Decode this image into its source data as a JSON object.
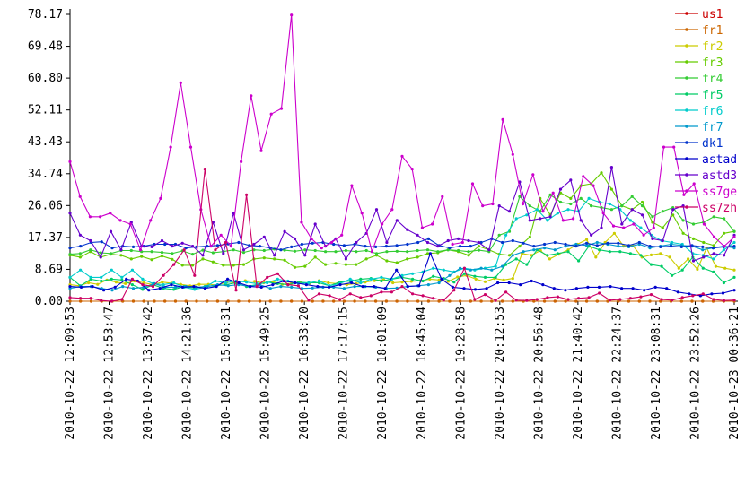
{
  "chart_data": {
    "type": "line",
    "title": "",
    "xlabel": "",
    "ylabel": "",
    "ylim": [
      0,
      78.17
    ],
    "y_ticks": [
      "0.00",
      "8.69",
      "17.37",
      "26.06",
      "34.74",
      "43.43",
      "52.11",
      "60.80",
      "69.48",
      "78.17"
    ],
    "x_ticks": [
      "2010-10-22 12:09:53",
      "2010-10-22 12:53:47",
      "2010-10-22 13:37:42",
      "2010-10-22 14:21:36",
      "2010-10-22 15:05:31",
      "2010-10-22 15:49:25",
      "2010-10-22 16:33:20",
      "2010-10-22 17:17:15",
      "2010-10-22 18:01:09",
      "2010-10-22 18:45:04",
      "2010-10-22 19:28:58",
      "2010-10-22 20:12:53",
      "2010-10-22 20:56:48",
      "2010-10-22 21:40:42",
      "2010-10-22 22:24:37",
      "2010-10-22 23:08:31",
      "2010-10-22 23:52:26",
      "2010-10-23 00:36:21"
    ],
    "grid": false,
    "legend_position": "right",
    "points_per_series": 64,
    "series": [
      {
        "name": "us1",
        "color": "#cc0000",
        "values": [
          0,
          0,
          0,
          0,
          0,
          0,
          0,
          0,
          0,
          0,
          0,
          0,
          0,
          0,
          0,
          0,
          0,
          0,
          0,
          0,
          0,
          0,
          0,
          0,
          0,
          0,
          0,
          0,
          0,
          0,
          0,
          0,
          0,
          0,
          0,
          0,
          0,
          0,
          0,
          0,
          0,
          0,
          0,
          0,
          0,
          0,
          0,
          0,
          0,
          0,
          0,
          0,
          0,
          0,
          0,
          0,
          0,
          0,
          0,
          0,
          0,
          0,
          0,
          0
        ]
      },
      {
        "name": "fr1",
        "color": "#cc6600",
        "values": [
          0,
          0,
          0,
          0,
          0,
          0,
          0,
          0,
          0,
          0,
          0,
          0,
          0,
          0,
          0,
          0,
          0,
          0,
          0,
          0,
          0,
          0,
          0,
          0,
          0,
          0,
          0,
          0,
          0,
          0,
          0,
          0,
          0,
          0,
          0,
          0,
          0,
          0,
          0,
          0,
          0,
          0,
          0,
          0,
          0,
          0,
          0,
          0,
          0,
          0,
          0,
          0,
          0,
          0,
          0,
          0,
          0,
          0,
          0,
          0,
          0,
          0,
          0,
          0
        ]
      },
      {
        "name": "fr2",
        "color": "#cccc00",
        "values": [
          4.5,
          4.2,
          5.0,
          4.6,
          5.8,
          5.2,
          4.8,
          5.5,
          5.0,
          4.5,
          5.2,
          4.9,
          4.6,
          4.2,
          4.6,
          4.6,
          4.4,
          5.2,
          5.0,
          5.6,
          5.4,
          5.0,
          5.3,
          4.6,
          4.9,
          5.0,
          4.9,
          5.6,
          5.0,
          4.8,
          4.5,
          4.8,
          5.2,
          5.6,
          5.9,
          5.0,
          5.2,
          5.4,
          5.6,
          6.0,
          5.8,
          5.4,
          6.6,
          7.0,
          6.0,
          5.3,
          6.2,
          5.8,
          6.2,
          13.0,
          12.5,
          13.8,
          11.5,
          12.8,
          14.0,
          15.5,
          16.8,
          12.0,
          16.0,
          18.5,
          15.0,
          15.2,
          12.0,
          12.6,
          13.0,
          12.0,
          9.0,
          11.5,
          8.7,
          14.5,
          9.5,
          9.0,
          8.5
        ]
      },
      {
        "name": "fr3",
        "color": "#66cc00",
        "values": [
          12.5,
          12.0,
          13.5,
          12.0,
          12.8,
          12.5,
          11.5,
          12.2,
          11.3,
          12.3,
          11.4,
          9.8,
          9.8,
          11.5,
          10.7,
          9.8,
          9.8,
          10.0,
          11.5,
          11.8,
          11.5,
          11.2,
          9.2,
          9.5,
          12.0,
          10.0,
          10.3,
          10.0,
          10.0,
          11.5,
          12.5,
          11.0,
          10.5,
          11.5,
          12.0,
          13.0,
          13.2,
          14.0,
          13.5,
          12.5,
          15.0,
          14.0,
          12.8,
          12.5,
          15.0,
          17.5,
          28.0,
          23.5,
          29.5,
          28.0,
          31.5,
          32.0,
          35.0,
          30.5,
          26.0,
          25.0,
          27.0,
          21.5,
          20.0,
          23.5,
          18.5,
          17.0,
          16.0,
          15.2,
          18.5,
          19.0
        ]
      },
      {
        "name": "fr4",
        "color": "#33cc33",
        "values": [
          12.8,
          13.0,
          14.0,
          13.2,
          13.0,
          13.8,
          13.8,
          13.5,
          13.5,
          13.3,
          13.0,
          13.7,
          12.8,
          13.9,
          13.2,
          13.5,
          14.0,
          13.3,
          14.0,
          13.8,
          14.2,
          13.9,
          13.6,
          14.0,
          13.8,
          13.5,
          13.5,
          13.8,
          13.5,
          13.8,
          13.0,
          13.5,
          13.6,
          13.5,
          13.8,
          14.0,
          13.5,
          14.0,
          13.8,
          13.5,
          13.9,
          13.5,
          18.0,
          19.0,
          28.5,
          26.0,
          24.5,
          29.0,
          27.0,
          26.5,
          28.0,
          26.0,
          25.5,
          25.0,
          26.0,
          28.5,
          26.0,
          23.0,
          24.5,
          25.5,
          22.0,
          21.0,
          21.5,
          23.0,
          22.5,
          19.0
        ]
      },
      {
        "name": "fr5",
        "color": "#00cc66",
        "values": [
          6.5,
          4.2,
          6.0,
          5.5,
          6.0,
          5.8,
          4.5,
          3.2,
          4.5,
          3.5,
          3.2,
          4.0,
          3.6,
          4.0,
          4.2,
          4.5,
          5.0,
          4.0,
          4.5,
          5.2,
          4.8,
          4.5,
          5.2,
          5.0,
          5.0,
          4.2,
          5.2,
          5.5,
          6.0,
          6.2,
          5.5,
          6.0,
          6.5,
          6.0,
          5.5,
          6.8,
          6.2,
          5.2,
          7.5,
          6.8,
          6.5,
          6.5,
          10.0,
          11.5,
          10.0,
          14.0,
          12.5,
          13.0,
          13.5,
          11.0,
          15.0,
          14.0,
          13.5,
          13.5,
          13.0,
          12.5,
          10.0,
          9.5,
          7.0,
          8.5,
          12.0,
          9.0,
          8.0,
          5.0,
          6.5
        ]
      },
      {
        "name": "fr6",
        "color": "#00cccc",
        "values": [
          6.5,
          8.5,
          6.5,
          6.5,
          8.5,
          6.5,
          8.5,
          6.0,
          4.8,
          4.5,
          5.0,
          3.8,
          3.2,
          3.8,
          5.5,
          5.0,
          5.5,
          5.2,
          4.8,
          5.0,
          6.0,
          5.5,
          4.8,
          5.0,
          5.5,
          4.2,
          4.8,
          6.0,
          5.0,
          6.0,
          6.5,
          6.0,
          7.0,
          7.5,
          8.0,
          9.0,
          8.5,
          8.0,
          9.0,
          8.5,
          9.0,
          9.5,
          18.0,
          22.5,
          23.5,
          25.0,
          22.0,
          24.0,
          25.0,
          24.5,
          28.0,
          27.0,
          26.5,
          25.0,
          22.0,
          20.0,
          18.0,
          16.5,
          16.0,
          15.5,
          13.0,
          12.5,
          11.5,
          14.0,
          16.0
        ]
      },
      {
        "name": "fr7",
        "color": "#0099cc",
        "values": [
          3.5,
          4.0,
          4.0,
          3.5,
          3.0,
          4.0,
          3.5,
          3.8,
          4.8,
          3.8,
          3.8,
          4.0,
          3.8,
          4.0,
          4.5,
          4.2,
          4.5,
          4.0,
          4.5,
          3.5,
          4.0,
          3.8,
          3.5,
          3.6,
          3.8,
          3.8,
          3.5,
          4.0,
          4.0,
          3.8,
          3.5,
          3.6,
          4.0,
          4.2,
          4.5,
          5.0,
          7.0,
          9.0,
          8.5,
          9.0,
          8.5,
          9.5,
          12.5,
          13.5,
          14.0,
          14.5,
          14.0,
          15.0,
          15.5,
          15.2,
          16.0,
          15.5,
          15.0,
          14.8,
          15.5,
          14.5,
          15.0,
          15.5,
          15.2,
          15.0,
          14.0,
          14.5,
          15.0,
          14.5
        ]
      },
      {
        "name": "dk1",
        "color": "#0033cc",
        "values": [
          14.5,
          15.0,
          16.0,
          16.2,
          14.5,
          15.0,
          14.8,
          15.0,
          15.5,
          15.5,
          15.5,
          14.5,
          14.8,
          15.0,
          15.2,
          15.6,
          16.0,
          15.2,
          15.0,
          14.5,
          14.0,
          14.8,
          15.5,
          15.8,
          16.0,
          15.5,
          15.2,
          15.5,
          15.0,
          14.8,
          15.0,
          15.2,
          15.5,
          16.0,
          17.0,
          15.2,
          14.5,
          15.0,
          15.0,
          16.0,
          17.0,
          16.0,
          16.5,
          15.8,
          15.0,
          15.5,
          16.0,
          15.5,
          15.0,
          15.8,
          15.2,
          15.8,
          15.8,
          15.2,
          16.0,
          15.0,
          14.8,
          15.0,
          14.8,
          15.2,
          14.8,
          14.5,
          14.8,
          15.0
        ]
      },
      {
        "name": "astad",
        "color": "#0000cc",
        "values": [
          4.0,
          3.8,
          4.0,
          3.0,
          3.8,
          6.0,
          5.5,
          3.0,
          3.5,
          4.5,
          3.8,
          4.0,
          3.5,
          4.0,
          6.0,
          5.0,
          4.0,
          3.8,
          4.5,
          5.5,
          5.0,
          4.5,
          4.0,
          3.8,
          4.5,
          5.0,
          4.0,
          4.0,
          3.5,
          8.5,
          4.0,
          4.2,
          13.0,
          6.0,
          3.8,
          3.5,
          3.2,
          3.5,
          5.0,
          5.0,
          4.5,
          5.5,
          4.5,
          3.5,
          3.0,
          3.5,
          3.8,
          3.8,
          4.0,
          3.5,
          3.5,
          3.0,
          3.8,
          3.5,
          2.5,
          2.0,
          1.5,
          2.0,
          2.2,
          3.0
        ]
      },
      {
        "name": "astd3",
        "color": "#6600cc",
        "values": [
          24.0,
          18.0,
          16.5,
          12.0,
          19.0,
          14.0,
          21.5,
          15.0,
          14.8,
          16.5,
          15.0,
          15.8,
          15.0,
          12.5,
          21.5,
          13.0,
          24.0,
          14.0,
          15.5,
          17.5,
          12.5,
          19.0,
          17.0,
          12.5,
          21.0,
          15.0,
          17.0,
          11.5,
          16.0,
          18.5,
          25.0,
          16.0,
          22.0,
          19.5,
          18.0,
          16.0,
          15.0,
          16.5,
          17.0,
          16.5,
          16.0,
          14.0,
          26.0,
          24.5,
          32.5,
          22.0,
          22.5,
          23.0,
          30.5,
          33.0,
          22.0,
          18.0,
          20.0,
          36.5,
          21.0,
          25.0,
          23.5,
          17.0,
          16.5,
          25.0,
          26.0,
          11.0,
          12.0,
          13.0,
          12.5,
          18.0
        ]
      },
      {
        "name": "ss7ge",
        "color": "#cc00cc",
        "values": [
          38.0,
          28.5,
          23.0,
          23.0,
          24.0,
          22.0,
          21.0,
          14.0,
          22.0,
          28.0,
          42.0,
          59.5,
          42.0,
          25.0,
          15.0,
          18.0,
          15.0,
          38.0,
          56.0,
          41.0,
          51.0,
          52.5,
          78.0,
          21.5,
          17.0,
          14.5,
          16.0,
          18.0,
          31.5,
          24.0,
          13.5,
          21.0,
          25.0,
          39.5,
          36.0,
          20.0,
          21.0,
          28.5,
          15.5,
          16.0,
          32.0,
          26.0,
          26.5,
          49.5,
          40.0,
          26.5,
          34.5,
          24.5,
          29.5,
          22.0,
          22.5,
          34.0,
          31.5,
          24.0,
          20.5,
          20.0,
          21.0,
          18.0,
          20.0,
          42.0,
          42.0,
          29.0,
          32.0,
          21.0,
          17.5,
          15.0,
          17.5
        ]
      },
      {
        "name": "ss7zh",
        "color": "#cc0066",
        "values": [
          1.0,
          0.8,
          0.8,
          0.2,
          0,
          0.5,
          6.0,
          4.5,
          4.0,
          7.0,
          10.0,
          14.0,
          7.0,
          36.0,
          14.0,
          16.0,
          3.0,
          29.0,
          4.0,
          6.5,
          7.5,
          4.5,
          4.2,
          0.3,
          2.0,
          1.5,
          0.5,
          2.0,
          1.0,
          1.5,
          2.5,
          2.5,
          4.0,
          2.0,
          1.5,
          0.8,
          0.3,
          3.0,
          9.0,
          0.5,
          1.8,
          0.2,
          2.5,
          0.3,
          0.2,
          0.5,
          1.0,
          1.2,
          0.5,
          0.8,
          1.0,
          2.2,
          0.3,
          0.5,
          0.8,
          1.2,
          1.8,
          0.5,
          0.3,
          1.0,
          1.5,
          2.0,
          0.5,
          0.2,
          0.3
        ]
      }
    ]
  }
}
